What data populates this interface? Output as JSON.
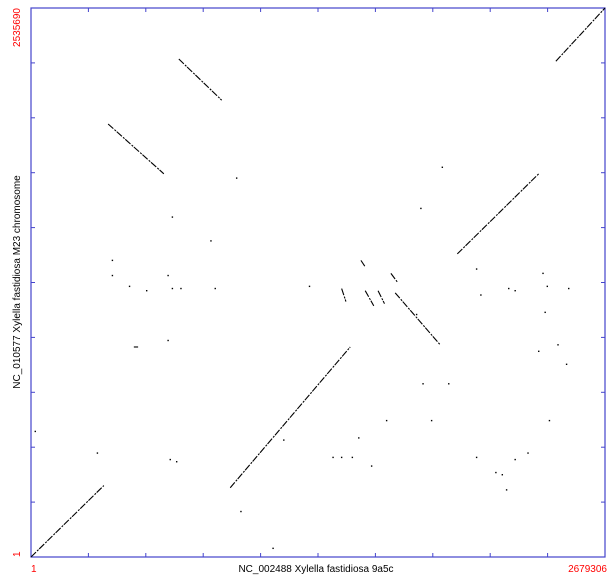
{
  "chart_data": {
    "type": "scatter",
    "title": "",
    "xlabel": "NC_002488 Xylella fastidiosa 9a5c",
    "ylabel": "NC_010577 Xylella fastidiosa M23 chromosome",
    "xlim": [
      1,
      2679306
    ],
    "ylim": [
      1,
      2535690
    ],
    "x_tick_labels": {
      "min": "1",
      "max": "2679306"
    },
    "y_tick_labels": {
      "min": "1",
      "max": "2535690"
    },
    "grid": false,
    "frame_color": "#4444cc",
    "end_label_color": "#ff0000",
    "dot_color": "#000000",
    "segments": [
      {
        "x1": 0,
        "y1": 0,
        "x2": 340000,
        "y2": 330000
      },
      {
        "x1": 930000,
        "y1": 320000,
        "x2": 1490000,
        "y2": 970000
      },
      {
        "x1": 1990000,
        "y1": 1400000,
        "x2": 2370000,
        "y2": 1770000
      },
      {
        "x1": 2450000,
        "y1": 2290000,
        "x2": 2679306,
        "y2": 2535690
      },
      {
        "x1": 360000,
        "y1": 2000000,
        "x2": 620000,
        "y2": 1770000
      },
      {
        "x1": 690000,
        "y1": 2300000,
        "x2": 890000,
        "y2": 2110000
      },
      {
        "x1": 1700000,
        "y1": 1220000,
        "x2": 1910000,
        "y2": 980000
      },
      {
        "x1": 1560000,
        "y1": 1230000,
        "x2": 1600000,
        "y2": 1160000
      },
      {
        "x1": 1620000,
        "y1": 1230000,
        "x2": 1650000,
        "y2": 1170000
      },
      {
        "x1": 1450000,
        "y1": 1240000,
        "x2": 1470000,
        "y2": 1180000
      },
      {
        "x1": 1680000,
        "y1": 1310000,
        "x2": 1710000,
        "y2": 1270000
      },
      {
        "x1": 1540000,
        "y1": 1370000,
        "x2": 1560000,
        "y2": 1340000
      },
      {
        "x1": 480000,
        "y1": 970000,
        "x2": 500000,
        "y2": 970000
      }
    ],
    "points": [
      [
        640,
        1000
      ],
      [
        660,
        1240
      ],
      [
        700,
        1240
      ],
      [
        860,
        1240
      ],
      [
        840,
        1460
      ],
      [
        960,
        1750
      ],
      [
        660,
        1570
      ],
      [
        640,
        1300
      ],
      [
        380,
        1370
      ],
      [
        380,
        1300
      ],
      [
        460,
        1250
      ],
      [
        540,
        1230
      ],
      [
        1300,
        1250
      ],
      [
        2260,
        1230
      ],
      [
        2230,
        1240
      ],
      [
        2410,
        1250
      ],
      [
        2390,
        1310
      ],
      [
        2400,
        1130
      ],
      [
        2370,
        950
      ],
      [
        2460,
        980
      ],
      [
        2100,
        1210
      ],
      [
        2080,
        1330
      ],
      [
        1920,
        1800
      ],
      [
        1820,
        1610
      ],
      [
        1800,
        1120
      ],
      [
        1830,
        800
      ],
      [
        1950,
        800
      ],
      [
        1870,
        630
      ],
      [
        1660,
        630
      ],
      [
        1590,
        420
      ],
      [
        1530,
        550
      ],
      [
        1450,
        460
      ],
      [
        1500,
        460
      ],
      [
        1410,
        460
      ],
      [
        1180,
        540
      ],
      [
        1130,
        40
      ],
      [
        980,
        210
      ],
      [
        680,
        440
      ],
      [
        650,
        450
      ],
      [
        310,
        480
      ],
      [
        2080,
        460
      ],
      [
        2170,
        390
      ],
      [
        2260,
        450
      ],
      [
        2200,
        380
      ],
      [
        2320,
        480
      ],
      [
        2220,
        310
      ],
      [
        2420,
        630
      ],
      [
        2500,
        890
      ],
      [
        2510,
        1240
      ],
      [
        20,
        580
      ]
    ]
  }
}
